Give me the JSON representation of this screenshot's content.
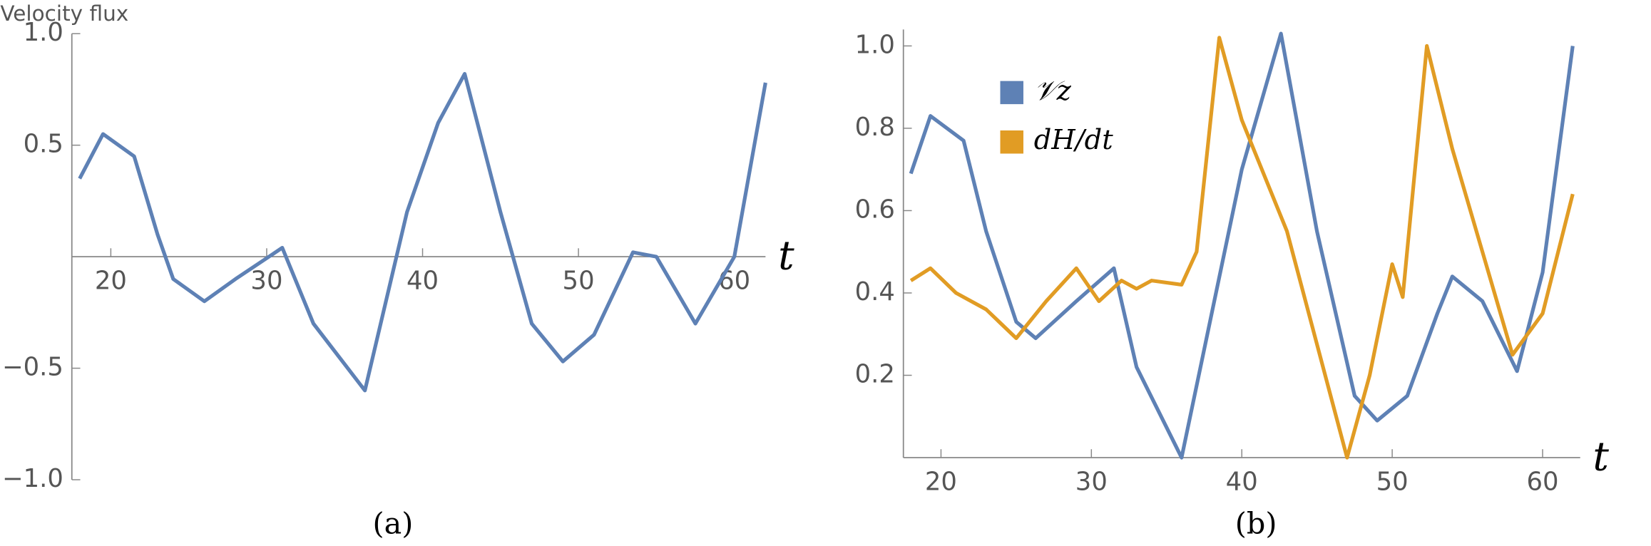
{
  "chart_data": [
    {
      "type": "line",
      "panel_label": "(a)",
      "y_label": "Velocity flux",
      "x_label": "t",
      "series": [
        {
          "name": "Velocity flux",
          "color": "#5E81B5",
          "x": [
            18,
            19.5,
            21.5,
            23,
            24,
            26,
            28,
            31,
            33,
            36.3,
            39,
            41,
            42.7,
            45,
            47,
            49,
            51,
            53.5,
            55,
            57.5,
            60,
            62
          ],
          "values": [
            0.35,
            0.55,
            0.45,
            0.1,
            -0.1,
            -0.2,
            -0.1,
            0.04,
            -0.3,
            -0.6,
            0.2,
            0.6,
            0.82,
            0.2,
            -0.3,
            -0.47,
            -0.35,
            0.02,
            0.0,
            -0.3,
            0,
            0.78
          ]
        }
      ],
      "xlim": [
        17.5,
        62
      ],
      "ylim": [
        -1,
        1
      ],
      "xticks": [
        20,
        30,
        40,
        50,
        60
      ],
      "yticks": [
        {
          "value": -1,
          "label": "−1.0"
        },
        {
          "value": -0.5,
          "label": "−0.5"
        },
        0.5,
        {
          "value": 1,
          "label": "1.0"
        }
      ]
    },
    {
      "type": "line",
      "panel_label": "(b)",
      "x_label": "t",
      "series": [
        {
          "name": "𝒱z",
          "color": "#5E81B5",
          "x": [
            18,
            19.3,
            21.5,
            23,
            25,
            26.3,
            29,
            31.5,
            33,
            36,
            38,
            40,
            42.6,
            45,
            47.5,
            49,
            51,
            53,
            54,
            56,
            58.3,
            60,
            62
          ],
          "values": [
            0.69,
            0.83,
            0.77,
            0.55,
            0.33,
            0.29,
            0.38,
            0.46,
            0.22,
            0.0,
            0.35,
            0.7,
            1.03,
            0.55,
            0.15,
            0.09,
            0.15,
            0.35,
            0.44,
            0.38,
            0.21,
            0.45,
            1.0
          ]
        },
        {
          "name": "dH/dt",
          "color": "#E19C24",
          "x": [
            18,
            19.3,
            21,
            23,
            25,
            27,
            29,
            30.5,
            32,
            33,
            34,
            36,
            37,
            38.5,
            40,
            43,
            47,
            48.5,
            50,
            50.7,
            52.3,
            54,
            56,
            58,
            60,
            62
          ],
          "values": [
            0.43,
            0.46,
            0.4,
            0.36,
            0.29,
            0.38,
            0.46,
            0.38,
            0.43,
            0.41,
            0.43,
            0.42,
            0.5,
            1.02,
            0.82,
            0.55,
            0.0,
            0.2,
            0.47,
            0.39,
            1.0,
            0.75,
            0.5,
            0.25,
            0.35,
            0.64
          ]
        }
      ],
      "xlim": [
        17.5,
        62.5
      ],
      "ylim": [
        0,
        1.04
      ],
      "xticks": [
        20,
        30,
        40,
        50,
        60
      ],
      "yticks": [
        0.2,
        0.4,
        0.6,
        0.8,
        {
          "value": 1,
          "label": "1.0"
        }
      ],
      "legend": "top-left"
    }
  ]
}
